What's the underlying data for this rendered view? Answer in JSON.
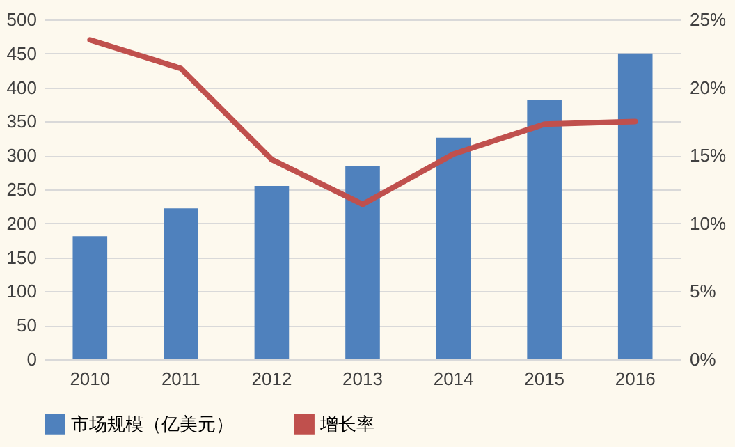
{
  "chart_data": {
    "type": "bar",
    "categories": [
      "2010",
      "2011",
      "2012",
      "2013",
      "2014",
      "2015",
      "2016"
    ],
    "series": [
      {
        "name": "市场规模（亿美元）",
        "color": "#4f81bd",
        "values": [
          181,
          222,
          255,
          284,
          326,
          382,
          450
        ]
      },
      {
        "name": "增长率",
        "type": "line",
        "axis": "y2",
        "color": "#c0504d",
        "values": [
          23.5,
          21.4,
          14.7,
          11.4,
          15.1,
          17.3,
          17.5
        ]
      }
    ],
    "ylim": [
      0,
      500
    ],
    "yticks": [
      0,
      50,
      100,
      150,
      200,
      250,
      300,
      350,
      400,
      450,
      500
    ],
    "y2lim": [
      0,
      25
    ],
    "y2ticks": [
      {
        "value": 0,
        "label": "0%"
      },
      {
        "value": 5,
        "label": "5%"
      },
      {
        "value": 10,
        "label": "10%"
      },
      {
        "value": 15,
        "label": "15%"
      },
      {
        "value": 20,
        "label": "20%"
      },
      {
        "value": 25,
        "label": "25%"
      }
    ],
    "grid": "y",
    "legend": "bottom",
    "marker": "none",
    "line_style": "solid"
  }
}
